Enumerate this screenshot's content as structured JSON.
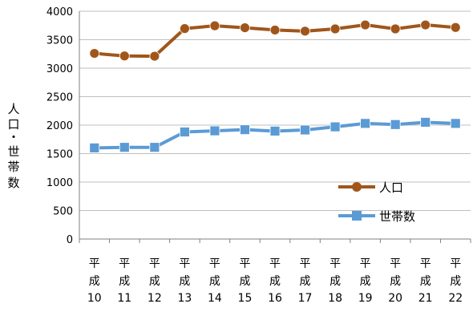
{
  "chart_data": {
    "type": "line",
    "categories": [
      [
        "平",
        "成",
        "10"
      ],
      [
        "平",
        "成",
        "11"
      ],
      [
        "平",
        "成",
        "12"
      ],
      [
        "平",
        "成",
        "13"
      ],
      [
        "平",
        "成",
        "14"
      ],
      [
        "平",
        "成",
        "15"
      ],
      [
        "平",
        "成",
        "16"
      ],
      [
        "平",
        "成",
        "17"
      ],
      [
        "平",
        "成",
        "18"
      ],
      [
        "平",
        "成",
        "19"
      ],
      [
        "平",
        "成",
        "20"
      ],
      [
        "平",
        "成",
        "21"
      ],
      [
        "平",
        "成",
        "22"
      ]
    ],
    "ylabel": [
      "人",
      "口",
      "・",
      "世",
      "帯",
      "数"
    ],
    "ylim": [
      0,
      4000
    ],
    "yticks": [
      "0",
      "500",
      "1000",
      "1500",
      "2000",
      "2500",
      "3000",
      "3500",
      "4000"
    ],
    "grid": true,
    "legend_position": "bottom-right",
    "series": [
      {
        "name": "人口",
        "color": "#A0561A",
        "marker": "circle",
        "values": [
          3260,
          3215,
          3210,
          3695,
          3745,
          3710,
          3670,
          3650,
          3690,
          3760,
          3690,
          3760,
          3715
        ]
      },
      {
        "name": "世帯数",
        "color": "#5B9BD5",
        "marker": "square",
        "values": [
          1600,
          1610,
          1610,
          1880,
          1900,
          1920,
          1895,
          1915,
          1970,
          2030,
          2010,
          2050,
          2030
        ]
      }
    ]
  }
}
